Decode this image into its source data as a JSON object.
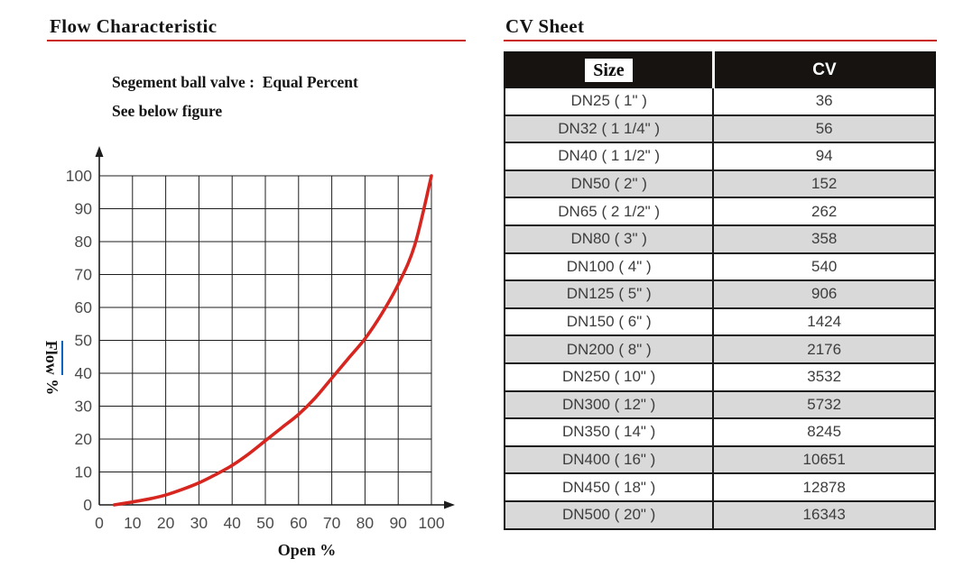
{
  "left_panel": {
    "title": "Flow Characteristic",
    "subtitle_line1": "Segement ball valve :  Equal Percent",
    "subtitle_line2": "See below figure"
  },
  "right_panel": {
    "title": "CV Sheet"
  },
  "accent": {
    "rule_red": "#c9211a",
    "link_blue": "#0563c1",
    "curve_red": "#d7261f",
    "header_black": "#171310",
    "row_alt_gray": "#d9d9d9"
  },
  "chart_data": {
    "type": "line",
    "title": "Flow Characteristic",
    "xlabel": "Open %",
    "ylabel": "Flow %",
    "ylabel_word": "Flow",
    "ylabel_unit": "%",
    "xlim": [
      0,
      100
    ],
    "ylim": [
      0,
      100
    ],
    "grid": true,
    "x_ticks": [
      0,
      10,
      20,
      30,
      40,
      50,
      60,
      70,
      80,
      90,
      100
    ],
    "y_ticks": [
      0,
      10,
      20,
      30,
      40,
      50,
      60,
      70,
      80,
      90,
      100
    ],
    "series": [
      {
        "name": "Equal Percent",
        "color": "#d7261f",
        "points": [
          [
            4.5,
            0
          ],
          [
            10,
            0.9
          ],
          [
            15,
            1.8
          ],
          [
            20,
            3
          ],
          [
            25,
            4.7
          ],
          [
            30,
            6.7
          ],
          [
            35,
            9.2
          ],
          [
            40,
            12
          ],
          [
            45,
            15.5
          ],
          [
            50,
            19.5
          ],
          [
            55,
            23.5
          ],
          [
            60,
            27.5
          ],
          [
            65,
            32.5
          ],
          [
            70,
            38.5
          ],
          [
            75,
            44.5
          ],
          [
            80,
            50.5
          ],
          [
            85,
            58
          ],
          [
            90,
            67
          ],
          [
            95,
            79
          ],
          [
            100,
            100
          ]
        ]
      }
    ]
  },
  "table": {
    "headers": [
      "Size",
      "CV"
    ],
    "rows": [
      {
        "size": "DN25 ( 1\" )",
        "cv": "36"
      },
      {
        "size": "DN32 ( 1 1/4\" )",
        "cv": "56"
      },
      {
        "size": "DN40 ( 1 1/2\" )",
        "cv": "94"
      },
      {
        "size": "DN50 ( 2\" )",
        "cv": "152"
      },
      {
        "size": "DN65 ( 2 1/2\" )",
        "cv": "262"
      },
      {
        "size": "DN80 ( 3\" )",
        "cv": "358"
      },
      {
        "size": "DN100 ( 4\" )",
        "cv": "540"
      },
      {
        "size": "DN125 ( 5\" )",
        "cv": "906"
      },
      {
        "size": "DN150 ( 6\" )",
        "cv": "1424"
      },
      {
        "size": "DN200 ( 8\" )",
        "cv": "2176"
      },
      {
        "size": "DN250 ( 10\" )",
        "cv": "3532"
      },
      {
        "size": "DN300 ( 12\" )",
        "cv": "5732"
      },
      {
        "size": "DN350 ( 14\" )",
        "cv": "8245"
      },
      {
        "size": "DN400 ( 16\" )",
        "cv": "10651"
      },
      {
        "size": "DN450 ( 18\" )",
        "cv": "12878"
      },
      {
        "size": "DN500 ( 20\" )",
        "cv": "16343"
      }
    ]
  }
}
